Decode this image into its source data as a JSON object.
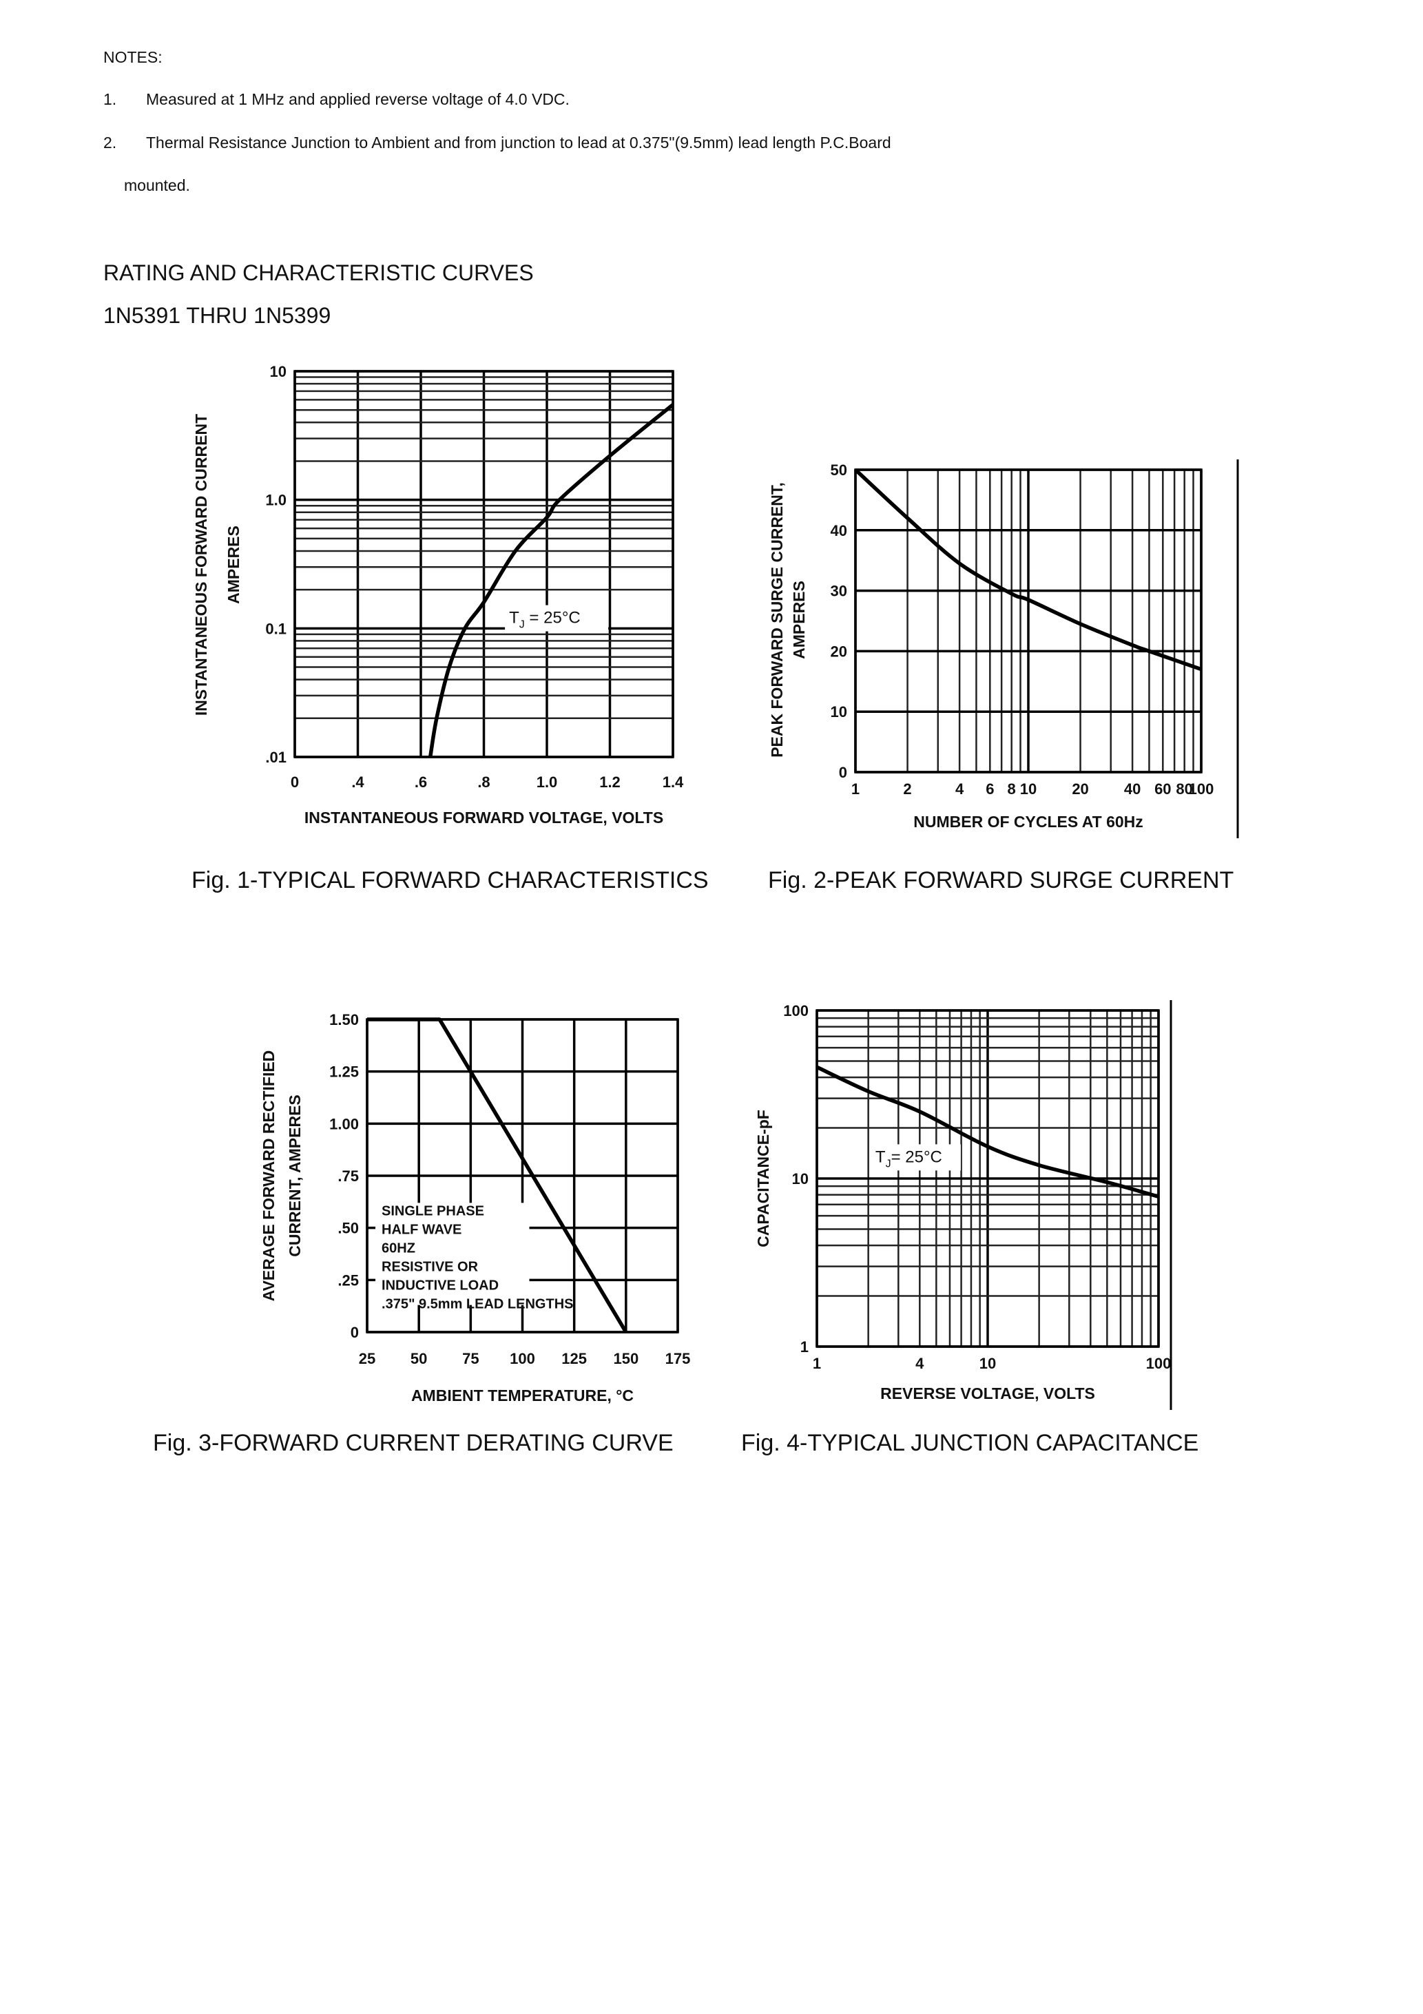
{
  "notes": {
    "heading": "NOTES:",
    "items": [
      {
        "num": "1.",
        "text": "Measured at 1 MHz and applied reverse voltage of 4.0 VDC."
      },
      {
        "num": "2.",
        "text": "Thermal Resistance Junction to Ambient and from junction to lead at 0.375\"(9.5mm) lead length P.C.Board",
        "continuation": "mounted."
      }
    ]
  },
  "section": {
    "title": "RATING AND CHARACTERISTIC CURVES",
    "subtitle": "1N5391 THRU 1N5399"
  },
  "chart_data": [
    {
      "type": "line",
      "title": "Fig. 1-TYPICAL FORWARD CHARACTERISTICS",
      "xlabel": "INSTANTANEOUS FORWARD VOLTAGE, VOLTS",
      "ylabel": [
        "INSTANTANEOUS FORWARD CURRENT",
        "AMPERES"
      ],
      "xscale": "linear",
      "yscale": "log",
      "xlim": [
        0,
        1.4
      ],
      "ylim": [
        0.01,
        10
      ],
      "xticks": [
        0,
        0.4,
        0.6,
        0.8,
        1.0,
        1.2,
        1.4
      ],
      "xtick_labels": [
        "0",
        ".4",
        ".6",
        ".8",
        "1.0",
        "1.2",
        "1.4"
      ],
      "yticks": [
        0.01,
        0.1,
        1,
        10
      ],
      "ytick_labels": [
        ".01",
        "0.1",
        "1.0",
        "10"
      ],
      "grid": true,
      "annotation": {
        "parts": [
          "T",
          "J",
          " = 25°C"
        ]
      },
      "series": [
        {
          "x": [
            0.63,
            0.65,
            0.69,
            0.74,
            0.8,
            0.9,
            1.0,
            1.04,
            1.2,
            1.4
          ],
          "y": [
            0.01,
            0.02,
            0.05,
            0.1,
            0.16,
            0.4,
            0.73,
            1.0,
            2.2,
            5.5
          ]
        }
      ]
    },
    {
      "type": "line",
      "title": "Fig. 2-PEAK FORWARD SURGE CURRENT",
      "xlabel": "NUMBER OF CYCLES AT 60Hz",
      "ylabel": [
        "PEAK FORWARD SURGE CURRENT,",
        "AMPERES"
      ],
      "xscale": "log",
      "yscale": "linear",
      "xlim": [
        1,
        100
      ],
      "ylim": [
        0,
        50
      ],
      "xticks": [
        1,
        2,
        4,
        6,
        8,
        10,
        20,
        40,
        60,
        80,
        100
      ],
      "xtick_labels": [
        "1",
        "2",
        "4",
        "6",
        "8",
        "10",
        "20",
        "40",
        "60",
        "80",
        "100"
      ],
      "yticks": [
        0,
        10,
        20,
        30,
        40,
        50
      ],
      "ytick_labels": [
        "0",
        "10",
        "20",
        "30",
        "40",
        "50"
      ],
      "grid": true,
      "series": [
        {
          "x": [
            1,
            2,
            4,
            8,
            10,
            20,
            40,
            50,
            100
          ],
          "y": [
            50,
            42,
            34.5,
            29.5,
            28.5,
            24.5,
            21,
            20,
            17
          ]
        }
      ]
    },
    {
      "type": "line",
      "title": "Fig. 3-FORWARD CURRENT DERATING CURVE",
      "xlabel": "AMBIENT TEMPERATURE, °C",
      "ylabel": [
        "AVERAGE FORWARD RECTIFIED",
        "CURRENT, AMPERES"
      ],
      "xscale": "linear",
      "yscale": "linear",
      "xlim": [
        25,
        175
      ],
      "ylim": [
        0,
        1.5
      ],
      "xticks": [
        25,
        50,
        75,
        100,
        125,
        150,
        175
      ],
      "xtick_labels": [
        "25",
        "50",
        "75",
        "100",
        "125",
        "150",
        "175"
      ],
      "yticks": [
        0,
        0.25,
        0.5,
        0.75,
        1.0,
        1.25,
        1.5
      ],
      "ytick_labels": [
        "0",
        ".25",
        ".50",
        ".75",
        "1.00",
        "1.25",
        "1.50"
      ],
      "grid": true,
      "annotation": {
        "lines": [
          "SINGLE PHASE",
          "HALF WAVE",
          "60HZ",
          "RESISTIVE OR",
          "INDUCTIVE LOAD",
          ".375\" 9.5mm LEAD LENGTHS"
        ]
      },
      "series": [
        {
          "x": [
            25,
            60,
            150
          ],
          "y": [
            1.5,
            1.5,
            0
          ]
        }
      ]
    },
    {
      "type": "line",
      "title": "Fig. 4-TYPICAL JUNCTION CAPACITANCE",
      "xlabel": "REVERSE VOLTAGE, VOLTS",
      "ylabel": [
        "CAPACITANCE-pF"
      ],
      "xscale": "log",
      "yscale": "log",
      "xlim": [
        1,
        100
      ],
      "ylim": [
        1,
        100
      ],
      "xticks": [
        1,
        4,
        10,
        100
      ],
      "xtick_labels": [
        "1",
        "4",
        "10",
        "100"
      ],
      "yticks": [
        1,
        10,
        100
      ],
      "ytick_labels": [
        "1",
        "10",
        "100"
      ],
      "grid": true,
      "annotation": {
        "parts": [
          "T",
          "J",
          "= 25°C"
        ]
      },
      "series": [
        {
          "x": [
            1,
            2,
            4,
            10,
            20,
            50,
            100
          ],
          "y": [
            46,
            33,
            25,
            15.5,
            12,
            9.5,
            7.8
          ]
        }
      ]
    }
  ]
}
